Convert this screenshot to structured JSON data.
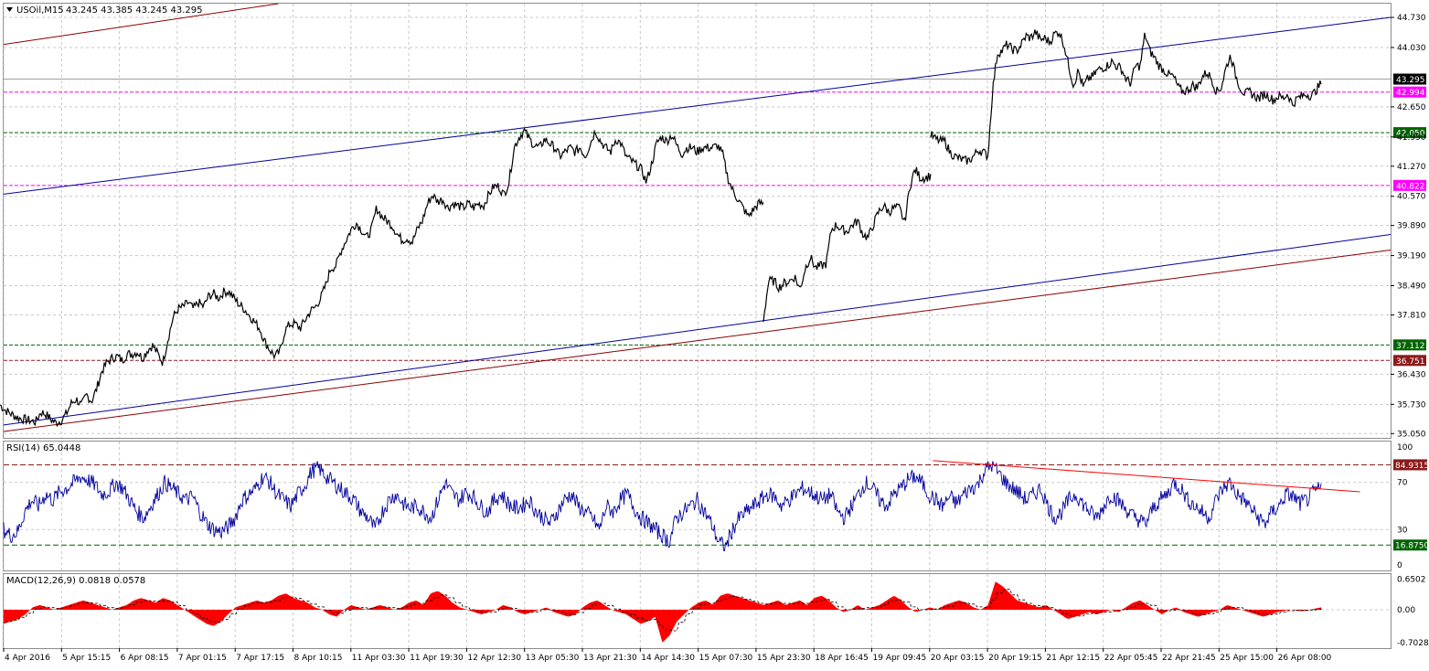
{
  "header": {
    "symbol": "USOil,M15",
    "ohlc": "43.245 43.385 43.245 43.295",
    "triangle_icon": "triangle-down-icon"
  },
  "rsi_header": "RSI(14) 65.0448",
  "macd_header": "MACD(12,26,9) 0.0818 0.0578",
  "colors": {
    "grid": "#c8c8c8",
    "price": "#000000",
    "rsi": "#00009c",
    "macd": "#ff0000",
    "trend_blue": "#00009c",
    "trend_red": "#8b0000",
    "magenta": "#ff00ff",
    "green": "#006400",
    "dark_red": "#8b1a1a"
  },
  "chart_data": [
    {
      "type": "candlestick-line",
      "panel": "main",
      "y_ticks": [
        "44.730",
        "44.030",
        "43.295",
        "42.994",
        "42.650",
        "42.050",
        "41.950",
        "41.270",
        "40.822",
        "40.570",
        "39.890",
        "39.190",
        "38.490",
        "37.810",
        "37.112",
        "36.751",
        "36.430",
        "35.730",
        "35.050"
      ],
      "axis_ticks": [
        44.73,
        44.03,
        42.65,
        41.95,
        41.27,
        40.57,
        39.89,
        39.19,
        38.49,
        37.81,
        36.43,
        35.73,
        35.05
      ],
      "ylim": [
        34.95,
        45.05
      ],
      "levels": [
        {
          "label": "43.295",
          "value": 43.295,
          "bg": "#000000",
          "fg": "#ffffff",
          "line": "#a0a0a0",
          "style": "solid"
        },
        {
          "label": "42.994",
          "value": 42.994,
          "bg": "#ff00ff",
          "fg": "#ffffff",
          "line": "#ff00ff",
          "style": "dashed"
        },
        {
          "label": "42.050",
          "value": 42.05,
          "bg": "#006400",
          "fg": "#ffffff",
          "line": "#006400",
          "style": "dashed"
        },
        {
          "label": "40.822",
          "value": 40.822,
          "bg": "#ff00ff",
          "fg": "#ffffff",
          "line": "#ff00ff",
          "style": "dashed"
        },
        {
          "label": "37.112",
          "value": 37.112,
          "bg": "#006400",
          "fg": "#ffffff",
          "line": "#006400",
          "style": "dashed"
        },
        {
          "label": "36.751",
          "value": 36.751,
          "bg": "#8b1a1a",
          "fg": "#ffffff",
          "line": "#8b1a1a",
          "style": "dashed"
        }
      ],
      "trendlines": [
        {
          "color": "#00009c",
          "from": [
            0.0,
            40.62
          ],
          "to": [
            1.0,
            44.73
          ]
        },
        {
          "color": "#8b0000",
          "from": [
            0.0,
            44.1
          ],
          "to": [
            0.198,
            45.05
          ]
        },
        {
          "color": "#00009c",
          "from": [
            0.0,
            35.25
          ],
          "to": [
            1.0,
            39.68
          ]
        },
        {
          "color": "#8b0000",
          "from": [
            0.0,
            35.1
          ],
          "to": [
            1.0,
            39.32
          ]
        }
      ],
      "series": [
        {
          "values": [
            35.72,
            35.6,
            35.52,
            35.45,
            35.4,
            35.38,
            35.35,
            35.32,
            35.55,
            35.5,
            35.38,
            35.3,
            35.35,
            35.5,
            35.75,
            35.85,
            35.7,
            35.95,
            35.8,
            36.1,
            36.5,
            36.7,
            36.8,
            36.85,
            36.75,
            36.9,
            36.9,
            36.95,
            36.8,
            37.0,
            37.1,
            36.9,
            36.7,
            37.25,
            37.75,
            37.95,
            38.0,
            38.1,
            37.95,
            38.1,
            38.0,
            38.25,
            38.3,
            38.2,
            38.35,
            38.35,
            38.2,
            38.05,
            37.95,
            37.8,
            37.65,
            37.5,
            37.2,
            37.0,
            36.85,
            36.95,
            37.45,
            37.6,
            37.6,
            37.5,
            37.7,
            37.9,
            38.0,
            38.2,
            38.5,
            38.9,
            38.95,
            39.3,
            39.55,
            39.8,
            39.95,
            39.8,
            39.6,
            39.8,
            40.3,
            40.1,
            40.0,
            39.9,
            39.7,
            39.55,
            39.6,
            39.5,
            39.8,
            40.0,
            40.4,
            40.6,
            40.45,
            40.5,
            40.3,
            40.4,
            40.35,
            40.3,
            40.4,
            40.3,
            40.4,
            40.35,
            40.6,
            40.8,
            40.8,
            40.6,
            40.9,
            41.7,
            41.95,
            42.1,
            41.9,
            41.75,
            41.7,
            41.9,
            41.8,
            41.7,
            41.5,
            41.6,
            41.7,
            41.6,
            41.7,
            41.5,
            41.8,
            42.1,
            41.85,
            41.7,
            41.6,
            41.9,
            41.8,
            41.5,
            41.4,
            41.3,
            41.2,
            40.9,
            41.3,
            41.8,
            41.95,
            41.85,
            42.0,
            41.75,
            41.55,
            41.7,
            41.7,
            41.6,
            41.7,
            41.7,
            41.7,
            41.75,
            41.55,
            41.0,
            40.7,
            40.5,
            40.3,
            40.1,
            40.25,
            40.4,
            40.4
          ]
        },
        {
          "values": [
            37.7,
            38.6,
            38.6,
            38.45,
            38.55,
            38.6,
            38.7,
            38.4,
            38.9,
            39.15,
            38.9,
            38.95,
            39.0,
            39.8,
            39.9,
            39.8,
            39.75,
            39.9,
            40.0,
            39.7,
            39.6,
            39.9,
            40.2,
            40.35,
            40.2,
            40.3,
            40.3,
            39.95,
            40.8,
            41.2,
            41.0,
            41.0,
            41.05
          ]
        },
        {
          "values": [
            42.0,
            41.9,
            41.85,
            41.85,
            41.6,
            41.5,
            41.45,
            41.4,
            41.4,
            41.5,
            41.65,
            41.6,
            41.5,
            43.05,
            43.9,
            43.95,
            44.1,
            44.0,
            43.95,
            44.1,
            44.3,
            44.25,
            44.4,
            44.2,
            44.25,
            44.15,
            44.35,
            44.4,
            44.1,
            43.6,
            43.15,
            43.5,
            43.1,
            43.3,
            43.35,
            43.5,
            43.55,
            43.6,
            43.7,
            43.6,
            43.55,
            43.3,
            43.2,
            43.6,
            43.6,
            44.35,
            43.95,
            43.8,
            43.6,
            43.5,
            43.4,
            43.35,
            43.1,
            43.0,
            43.05,
            43.15,
            43.1,
            43.35,
            43.45,
            43.3,
            43.0,
            43.1,
            43.55,
            43.85,
            43.4,
            43.1,
            42.95,
            43.0,
            42.9,
            42.85,
            42.95,
            42.9,
            42.8,
            42.9,
            42.85,
            42.95,
            42.7,
            42.85,
            42.9,
            42.95,
            42.9,
            43.05,
            43.2
          ]
        }
      ],
      "segment_ranges": [
        [
          0,
          835
        ],
        [
          835,
          1018
        ],
        [
          1018,
          1445
        ]
      ]
    },
    {
      "type": "line",
      "panel": "rsi",
      "name": "RSI(14)",
      "ylim": [
        0,
        100
      ],
      "y_ticks": [
        "100",
        "70",
        "30",
        "0"
      ],
      "levels": [
        {
          "label": "84.9315",
          "value": 84.9315,
          "bg": "#8b1a1a",
          "fg": "#ffffff",
          "line": "#8b1a1a"
        },
        {
          "label": "16.8750",
          "value": 16.875,
          "bg": "#006400",
          "fg": "#ffffff",
          "line": "#006400"
        }
      ],
      "trendline": {
        "color": "#ff0000",
        "from": [
          0.67,
          88.5
        ],
        "to": [
          0.978,
          62.0
        ]
      },
      "values": [
        30,
        25,
        28,
        45,
        55,
        50,
        60,
        55,
        62,
        65,
        70,
        75,
        72,
        68,
        60,
        62,
        70,
        65,
        55,
        45,
        40,
        50,
        60,
        70,
        65,
        60,
        55,
        58,
        45,
        35,
        30,
        28,
        32,
        40,
        55,
        60,
        65,
        75,
        70,
        60,
        55,
        50,
        60,
        68,
        80,
        82,
        75,
        70,
        65,
        60,
        55,
        45,
        40,
        30,
        45,
        55,
        60,
        52,
        48,
        50,
        45,
        40,
        55,
        70,
        60,
        55,
        62,
        58,
        50,
        45,
        55,
        60,
        52,
        48,
        50,
        55,
        45,
        40,
        35,
        45,
        55,
        60,
        50,
        45,
        40,
        30,
        50,
        45,
        55,
        60,
        48,
        40,
        35,
        30,
        25,
        20,
        40,
        45,
        50,
        55,
        45,
        35,
        20,
        15,
        30,
        40,
        45,
        50,
        55,
        60,
        58,
        50,
        55,
        60,
        65,
        62,
        58,
        55,
        60,
        45,
        40,
        50,
        60,
        70,
        65,
        55,
        50,
        60,
        65,
        72,
        75,
        70,
        60,
        55,
        50,
        58,
        52,
        60,
        65,
        68,
        80,
        85,
        78,
        70,
        65,
        60,
        55,
        60,
        65,
        50,
        40,
        45,
        55,
        60,
        52,
        45,
        40,
        50,
        60,
        55,
        48,
        42,
        38,
        35,
        48,
        55,
        60,
        70,
        65,
        55,
        50,
        45,
        40,
        55,
        65,
        70,
        60,
        55,
        48,
        40,
        35,
        45,
        50,
        60,
        58,
        52,
        55,
        62,
        65
      ]
    },
    {
      "type": "histogram+line",
      "panel": "macd",
      "name": "MACD(12,26,9)",
      "ylim": [
        -0.82,
        0.76
      ],
      "y_ticks": [
        "0.6502",
        "0.00",
        "-0.7028"
      ],
      "axis_ticks": [
        0.6502,
        0.0,
        -0.7028
      ],
      "histogram": [
        -0.3,
        -0.25,
        -0.2,
        -0.1,
        0.05,
        0.1,
        0.05,
        0.0,
        0.05,
        0.1,
        0.15,
        0.2,
        0.15,
        0.1,
        0.05,
        0.0,
        0.05,
        0.1,
        0.2,
        0.25,
        0.2,
        0.15,
        0.25,
        0.2,
        0.1,
        0.0,
        -0.1,
        -0.2,
        -0.3,
        -0.35,
        -0.25,
        -0.1,
        0.05,
        0.1,
        0.15,
        0.2,
        0.15,
        0.2,
        0.3,
        0.35,
        0.25,
        0.2,
        0.15,
        0.05,
        0.0,
        -0.1,
        -0.15,
        0.0,
        0.1,
        0.05,
        0.0,
        0.05,
        0.1,
        0.05,
        0.0,
        0.05,
        0.15,
        0.2,
        0.1,
        0.35,
        0.4,
        0.3,
        0.15,
        0.05,
        0.0,
        -0.05,
        -0.1,
        -0.05,
        0.0,
        0.1,
        0.05,
        -0.05,
        -0.1,
        -0.05,
        0.0,
        0.05,
        -0.05,
        -0.1,
        -0.15,
        -0.1,
        0.05,
        0.15,
        0.2,
        0.1,
        0.0,
        -0.05,
        -0.1,
        -0.2,
        -0.3,
        -0.25,
        -0.15,
        -0.7,
        -0.55,
        -0.25,
        -0.1,
        0.05,
        0.15,
        0.2,
        0.1,
        0.3,
        0.35,
        0.3,
        0.25,
        0.2,
        0.15,
        0.1,
        0.15,
        0.2,
        0.1,
        0.15,
        0.2,
        0.1,
        0.25,
        0.3,
        0.2,
        0.05,
        -0.05,
        0.0,
        0.1,
        0.0,
        0.05,
        0.1,
        0.2,
        0.3,
        0.2,
        0.05,
        -0.05,
        0.0,
        0.05,
        0.0,
        0.1,
        0.15,
        0.2,
        0.15,
        0.05,
        0.0,
        0.1,
        0.6,
        0.5,
        0.35,
        0.2,
        0.15,
        0.1,
        0.05,
        0.1,
        0.0,
        -0.1,
        -0.2,
        -0.15,
        -0.1,
        -0.05,
        -0.1,
        -0.05,
        0.0,
        -0.05,
        0.05,
        0.15,
        0.2,
        0.1,
        0.0,
        -0.1,
        0.0,
        0.05,
        -0.05,
        -0.1,
        -0.15,
        -0.1,
        -0.05,
        0.0,
        0.1,
        0.05,
        0.0,
        -0.05,
        -0.1,
        -0.15,
        -0.1,
        -0.05,
        -0.02,
        0.0,
        -0.03,
        -0.02,
        0.02,
        0.05
      ],
      "color": "#ff0000"
    }
  ],
  "x_labels": [
    "4 Apr 2016",
    "5 Apr 15:15",
    "6 Apr 08:15",
    "7 Apr 01:15",
    "7 Apr 17:15",
    "8 Apr 10:15",
    "11 Apr 03:30",
    "11 Apr 19:30",
    "12 Apr 12:30",
    "13 Apr 05:30",
    "13 Apr 21:30",
    "14 Apr 14:30",
    "15 Apr 07:30",
    "15 Apr 23:30",
    "18 Apr 16:45",
    "19 Apr 09:45",
    "20 Apr 03:15",
    "20 Apr 19:15",
    "21 Apr 12:15",
    "22 Apr 05:45",
    "22 Apr 21:45",
    "25 Apr 15:00",
    "26 Apr 08:00"
  ]
}
